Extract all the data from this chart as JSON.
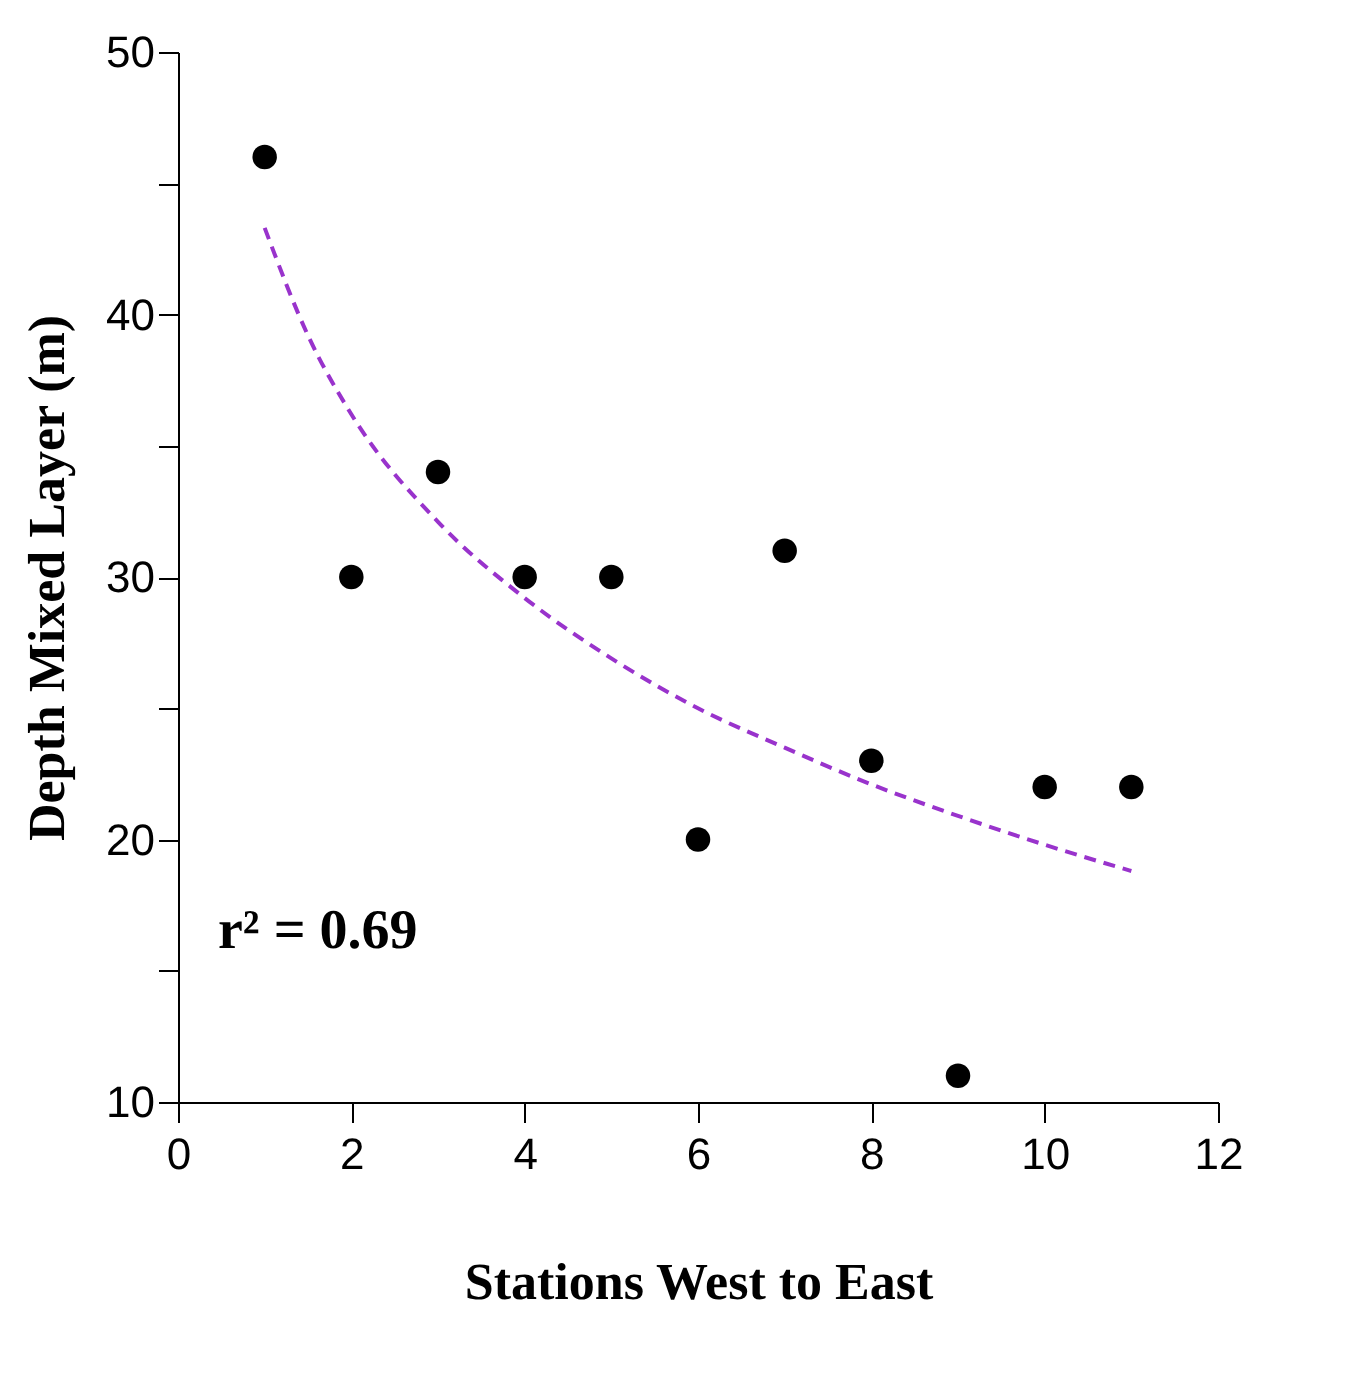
{
  "chart_data": {
    "type": "scatter",
    "xlabel": "Stations West to East",
    "ylabel": "Depth Mixed Layer (m)",
    "xlim": [
      0,
      12
    ],
    "xticks": [
      0,
      2,
      4,
      6,
      8,
      10,
      12
    ],
    "ylim": [
      10,
      50
    ],
    "yticks": [
      10,
      {
        "value": 15,
        "label": null
      },
      20,
      {
        "value": 25,
        "label": null
      },
      30,
      {
        "value": 35,
        "label": null
      },
      40,
      {
        "value": 45,
        "label": null
      },
      50
    ],
    "grid": false,
    "series": [
      {
        "color": "#000000",
        "marker": "circle",
        "x": [
          1,
          2,
          3,
          4,
          5,
          6,
          7,
          8,
          9,
          10,
          11
        ],
        "values": [
          46,
          30,
          34,
          30,
          30,
          20,
          31,
          23,
          11,
          22,
          22
        ]
      },
      {
        "type": "line",
        "color": "#9933cc",
        "line_style": "dashed",
        "marker": "none",
        "x": [
          1,
          1.5,
          2,
          3,
          4,
          5,
          6,
          7,
          8,
          9,
          10,
          11
        ],
        "values": [
          43.3,
          39.2,
          36.2,
          32.1,
          29.2,
          26.9,
          25.0,
          23.5,
          22.1,
          20.9,
          19.8,
          18.8
        ]
      }
    ],
    "annotations": [
      "r² = 0.69"
    ]
  }
}
